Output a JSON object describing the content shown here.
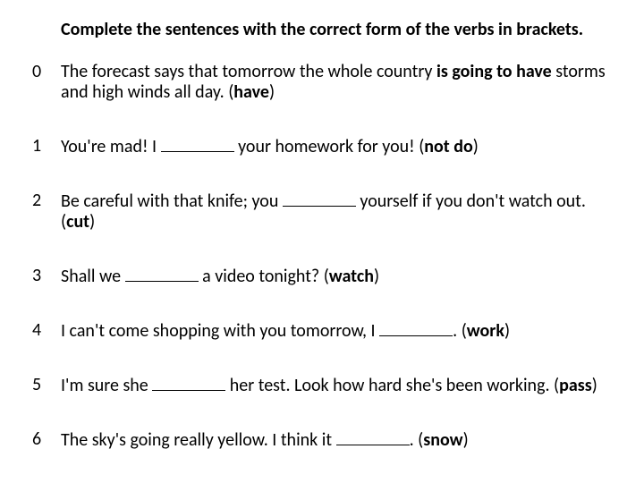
{
  "instruction": "Complete the sentences with the correct form of the verbs in brackets.",
  "text_color": "#000000",
  "background_color": "#ffffff",
  "font_family": "Calibri",
  "instruction_fontsize": 20,
  "item_fontsize": 20,
  "items": [
    {
      "num": "0",
      "pre": "The forecast says that tomorrow the whole country ",
      "answer": "is going to have",
      "post1": " storms and high winds all day. (",
      "verb": "have",
      "post2": ")"
    },
    {
      "num": "1",
      "pre": "You're mad! I ",
      "post1": " your homework for you! (",
      "verb": "not do",
      "post2": ")"
    },
    {
      "num": "2",
      "pre": "Be careful with that knife; you ",
      "post1": " yourself if you don't watch out. (",
      "verb": "cut",
      "post2": ")"
    },
    {
      "num": "3",
      "pre": "Shall we ",
      "post1": " a video tonight? (",
      "verb": "watch",
      "post2": ")"
    },
    {
      "num": "4",
      "pre": "I can't come shopping with you tomorrow, I ",
      "post1": ". (",
      "verb": "work",
      "post2": ")"
    },
    {
      "num": "5",
      "pre": "I'm sure she ",
      "post1": " her test. Look how hard she's been working. (",
      "verb": "pass",
      "post2": ")"
    },
    {
      "num": "6",
      "pre": "The sky's going really yellow. I think it ",
      "post1": ". (",
      "verb": "snow",
      "post2": ")"
    }
  ]
}
